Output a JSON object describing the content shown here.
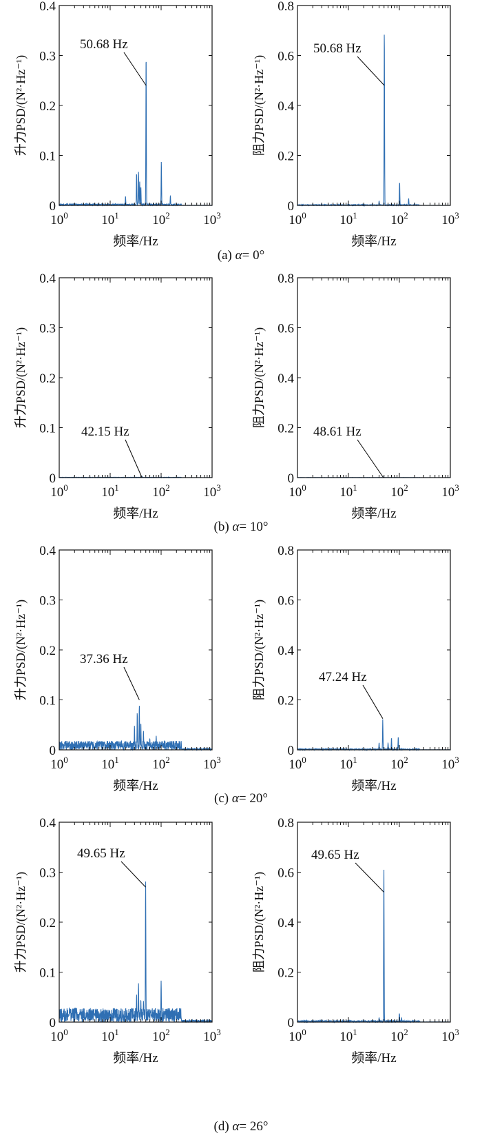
{
  "figure": {
    "rows": [
      {
        "caption_prefix": "(a) ",
        "alpha_label": "α",
        "caption_value": "= 0°"
      },
      {
        "caption_prefix": "(b) ",
        "alpha_label": "α",
        "caption_value": "= 10°"
      },
      {
        "caption_prefix": "(c) ",
        "alpha_label": "α",
        "caption_value": "= 20°"
      },
      {
        "caption_prefix": "(d) ",
        "alpha_label": "α",
        "caption_value": "= 26°"
      }
    ],
    "line_color": "#2f6fb3"
  },
  "chart_data": [
    {
      "type": "line",
      "panel": "a-lift",
      "xlabel": "频率/Hz",
      "ylabel": "升力PSD/(N²·Hz⁻¹)",
      "xscale": "log",
      "xlim": [
        1,
        1000
      ],
      "ylim": [
        0,
        0.4
      ],
      "yticks": [
        "0",
        "0.1",
        "0.2",
        "0.3",
        "0.4"
      ],
      "xticks": [
        {
          "base": "10",
          "exp": "0"
        },
        {
          "base": "10",
          "exp": "1"
        },
        {
          "base": "10",
          "exp": "2"
        },
        {
          "base": "10",
          "exp": "3"
        }
      ],
      "annotation": "50.68 Hz",
      "annotation_point": [
        50.68,
        0.24
      ],
      "noise": 0.003,
      "peaks": [
        [
          20,
          0.02
        ],
        [
          33,
          0.07
        ],
        [
          36,
          0.075
        ],
        [
          38,
          0.05
        ],
        [
          40,
          0.04
        ],
        [
          50.68,
          0.318
        ],
        [
          101,
          0.09
        ],
        [
          152,
          0.02
        ]
      ]
    },
    {
      "type": "line",
      "panel": "a-drag",
      "xlabel": "频率/Hz",
      "ylabel": "阻力PSD/(N²·Hz⁻¹)",
      "xscale": "log",
      "xlim": [
        1,
        1000
      ],
      "ylim": [
        0,
        0.8
      ],
      "yticks": [
        "0",
        "0.2",
        "0.4",
        "0.6",
        "0.8"
      ],
      "xticks": [
        {
          "base": "10",
          "exp": "0"
        },
        {
          "base": "10",
          "exp": "1"
        },
        {
          "base": "10",
          "exp": "2"
        },
        {
          "base": "10",
          "exp": "3"
        }
      ],
      "annotation": "50.68 Hz",
      "annotation_point": [
        50.68,
        0.48
      ],
      "noise": 0.003,
      "peaks": [
        [
          40,
          0.02
        ],
        [
          50.68,
          0.745
        ],
        [
          101,
          0.1
        ],
        [
          152,
          0.03
        ],
        [
          200,
          0.01
        ]
      ]
    },
    {
      "type": "line",
      "panel": "b-lift",
      "xlabel": "频率/Hz",
      "ylabel": "升力PSD/(N²·Hz⁻¹)",
      "xscale": "log",
      "xlim": [
        1,
        1000
      ],
      "ylim": [
        0,
        0.4
      ],
      "yticks": [
        "0",
        "0.1",
        "0.2",
        "0.3",
        "0.4"
      ],
      "xticks": [
        {
          "base": "10",
          "exp": "0"
        },
        {
          "base": "10",
          "exp": "1"
        },
        {
          "base": "10",
          "exp": "2"
        },
        {
          "base": "10",
          "exp": "3"
        }
      ],
      "annotation": "42.15 Hz",
      "annotation_point": [
        42.15,
        0.0
      ],
      "noise": 0.0008,
      "peaks": [
        [
          42.15,
          0.003
        ]
      ]
    },
    {
      "type": "line",
      "panel": "b-drag",
      "xlabel": "频率/Hz",
      "ylabel": "阻力PSD/(N²·Hz⁻¹)",
      "xscale": "log",
      "xlim": [
        1,
        1000
      ],
      "ylim": [
        0,
        0.8
      ],
      "yticks": [
        "0",
        "0.2",
        "0.4",
        "0.6",
        "0.8"
      ],
      "xticks": [
        {
          "base": "10",
          "exp": "0"
        },
        {
          "base": "10",
          "exp": "1"
        },
        {
          "base": "10",
          "exp": "2"
        },
        {
          "base": "10",
          "exp": "3"
        }
      ],
      "annotation": "48.61 Hz",
      "annotation_point": [
        48.61,
        0.0
      ],
      "noise": 0.0008,
      "peaks": [
        [
          48.61,
          0.003
        ]
      ]
    },
    {
      "type": "line",
      "panel": "c-lift",
      "xlabel": "频率/Hz",
      "ylabel": "升力PSD/(N²·Hz⁻¹)",
      "xscale": "log",
      "xlim": [
        1,
        1000
      ],
      "ylim": [
        0,
        0.4
      ],
      "yticks": [
        "0",
        "0.1",
        "0.2",
        "0.3",
        "0.4"
      ],
      "xticks": [
        {
          "base": "10",
          "exp": "0"
        },
        {
          "base": "10",
          "exp": "1"
        },
        {
          "base": "10",
          "exp": "2"
        },
        {
          "base": "10",
          "exp": "3"
        }
      ],
      "annotation": "37.36 Hz",
      "annotation_point": [
        37.36,
        0.1
      ],
      "noise": 0.018,
      "peaks": [
        [
          30,
          0.05
        ],
        [
          34,
          0.08
        ],
        [
          37.36,
          0.1
        ],
        [
          40,
          0.06
        ],
        [
          45,
          0.04
        ],
        [
          60,
          0.025
        ],
        [
          80,
          0.03
        ]
      ]
    },
    {
      "type": "line",
      "panel": "c-drag",
      "xlabel": "频率/Hz",
      "ylabel": "阻力PSD/(N²·Hz⁻¹)",
      "xscale": "log",
      "xlim": [
        1,
        1000
      ],
      "ylim": [
        0,
        0.8
      ],
      "yticks": [
        "0",
        "0.2",
        "0.4",
        "0.6",
        "0.8"
      ],
      "xticks": [
        {
          "base": "10",
          "exp": "0"
        },
        {
          "base": "10",
          "exp": "1"
        },
        {
          "base": "10",
          "exp": "2"
        },
        {
          "base": "10",
          "exp": "3"
        }
      ],
      "annotation": "47.24 Hz",
      "annotation_point": [
        47.24,
        0.125
      ],
      "noise": 0.004,
      "peaks": [
        [
          40,
          0.03
        ],
        [
          47.24,
          0.125
        ],
        [
          60,
          0.03
        ],
        [
          70,
          0.05
        ],
        [
          95,
          0.055
        ]
      ]
    },
    {
      "type": "line",
      "panel": "d-lift",
      "xlabel": "频率/Hz",
      "ylabel": "升力PSD/(N²·Hz⁻¹)",
      "xscale": "log",
      "xlim": [
        1,
        1000
      ],
      "ylim": [
        0,
        0.4
      ],
      "yticks": [
        "0",
        "0.1",
        "0.2",
        "0.3",
        "0.4"
      ],
      "xticks": [
        {
          "base": "10",
          "exp": "0"
        },
        {
          "base": "10",
          "exp": "1"
        },
        {
          "base": "10",
          "exp": "2"
        },
        {
          "base": "10",
          "exp": "3"
        }
      ],
      "annotation": "49.65 Hz",
      "annotation_point": [
        49.65,
        0.27
      ],
      "noise": 0.028,
      "peaks": [
        [
          33,
          0.06
        ],
        [
          36,
          0.08
        ],
        [
          40,
          0.05
        ],
        [
          45,
          0.045
        ],
        [
          49.65,
          0.322
        ],
        [
          100,
          0.095
        ],
        [
          130,
          0.02
        ]
      ]
    },
    {
      "type": "line",
      "panel": "d-drag",
      "xlabel": "频率/Hz",
      "ylabel": "阻力PSD/(N²·Hz⁻¹)",
      "xscale": "log",
      "xlim": [
        1,
        1000
      ],
      "ylim": [
        0,
        0.8
      ],
      "yticks": [
        "0",
        "0.2",
        "0.4",
        "0.6",
        "0.8"
      ],
      "xticks": [
        {
          "base": "10",
          "exp": "0"
        },
        {
          "base": "10",
          "exp": "1"
        },
        {
          "base": "10",
          "exp": "2"
        },
        {
          "base": "10",
          "exp": "3"
        }
      ],
      "annotation": "49.65 Hz",
      "annotation_point": [
        49.65,
        0.52
      ],
      "noise": 0.006,
      "peaks": [
        [
          40,
          0.02
        ],
        [
          49.65,
          0.725
        ],
        [
          100,
          0.04
        ],
        [
          110,
          0.02
        ]
      ]
    }
  ]
}
